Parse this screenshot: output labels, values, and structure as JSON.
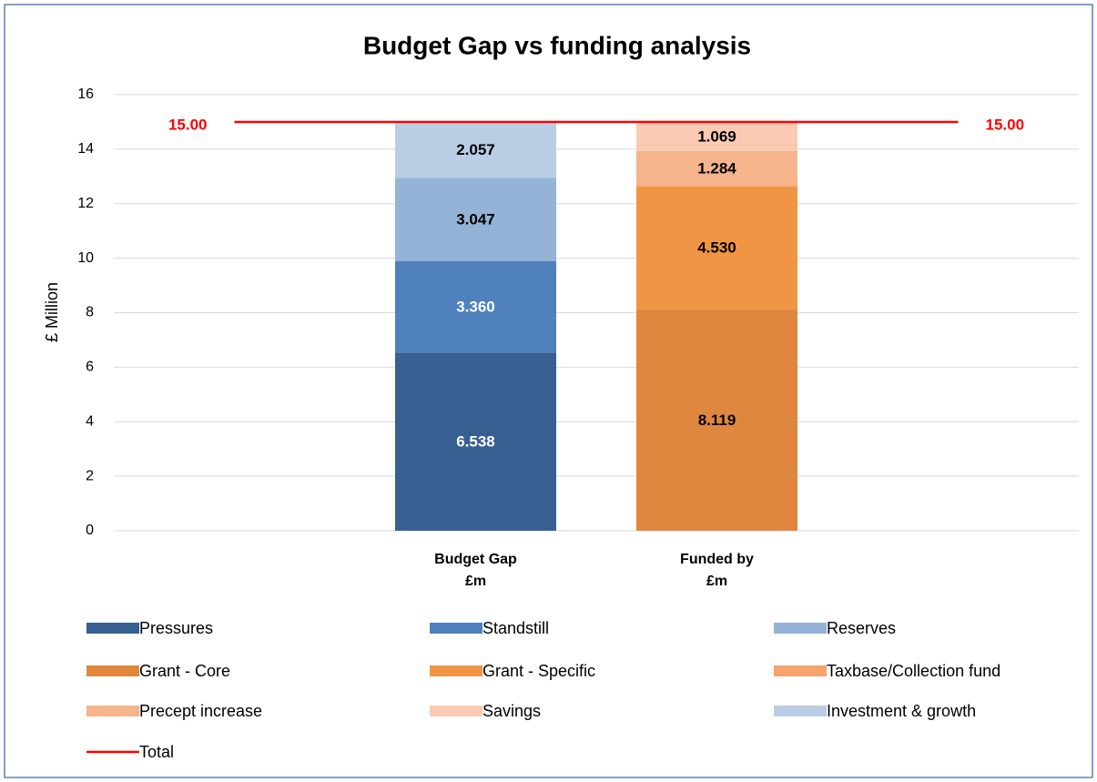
{
  "chart_data": {
    "type": "bar",
    "stacked": true,
    "title": "Budget Gap vs funding analysis",
    "y_label": "£ Million",
    "categories": [
      null,
      "Budget Gap £m",
      "Funded by £m",
      null
    ],
    "ylim": [
      0,
      16
    ],
    "yticks": [
      0,
      2,
      4,
      6,
      8,
      10,
      12,
      14,
      16
    ],
    "grid": true,
    "legend": "bottom",
    "series": [
      {
        "name": "Pressures",
        "color": "#375f92",
        "values": [
          null,
          6.538,
          null,
          null
        ],
        "value_labels": [
          null,
          "6.538",
          null,
          null
        ]
      },
      {
        "name": "Standstill",
        "color": "#4f81bd",
        "values": [
          null,
          3.36,
          null,
          null
        ],
        "value_labels": [
          null,
          "3.360",
          null,
          null
        ]
      },
      {
        "name": "Reserves",
        "color": "#95b3d7",
        "values": [
          null,
          3.047,
          null,
          null
        ],
        "value_labels": [
          null,
          "3.047",
          null,
          null
        ]
      },
      {
        "name": "Grant - Core",
        "color": "#e0873f",
        "values": [
          null,
          null,
          8.119,
          null
        ],
        "value_labels": [
          null,
          null,
          "8.119",
          null
        ]
      },
      {
        "name": "Grant - Specific",
        "color": "#f09545",
        "values": [
          null,
          null,
          4.53,
          null
        ],
        "value_labels": [
          null,
          null,
          "4.530",
          null
        ]
      },
      {
        "name": "Taxbase/Collection fund",
        "color": "#f4a46c",
        "values": [
          null,
          null,
          null,
          null
        ]
      },
      {
        "name": "Precept increase",
        "color": "#f6b48c",
        "values": [
          null,
          null,
          1.284,
          null
        ],
        "value_labels": [
          null,
          null,
          "1.284",
          null
        ]
      },
      {
        "name": "Savings",
        "color": "#facbb2",
        "values": [
          null,
          null,
          1.069,
          null
        ],
        "value_labels": [
          null,
          null,
          "1.069",
          null
        ]
      },
      {
        "name": "Investment & growth",
        "color": "#b9cde5",
        "values": [
          null,
          2.057,
          null,
          null
        ],
        "value_labels": [
          null,
          "2.057",
          null,
          null
        ]
      },
      {
        "name": "Total",
        "type": "line",
        "color": "#ff0000",
        "values": [
          15,
          15,
          15,
          15
        ],
        "value_labels": [
          "15.00",
          null,
          null,
          "15.00"
        ]
      }
    ]
  }
}
